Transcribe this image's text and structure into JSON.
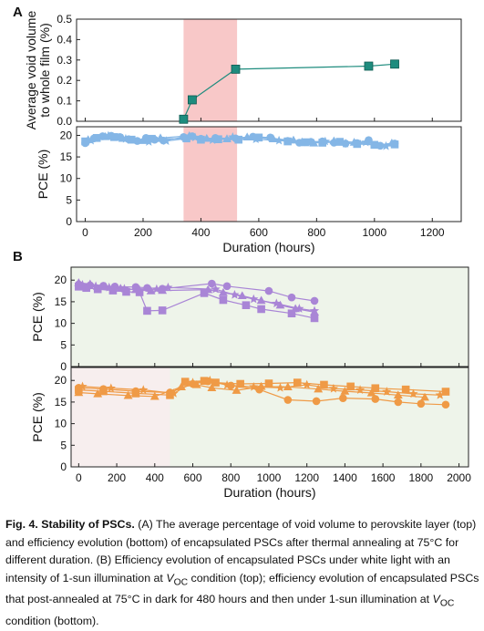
{
  "panel_labels": {
    "a": "A",
    "b": "B"
  },
  "caption": {
    "fig": "Fig. 4. Stability of PSCs.",
    "a_label": "(A)",
    "a_text": "The average percentage of void volume to perovskite layer (top) and efficiency evolution (bottom) of encapsulated PSCs after thermal annealing at 75°C for different duration.",
    "b_label": "(B)",
    "b_text_1": "Efficiency evolution of encapsulated PSCs under white light with an intensity of 1-sun illumination at",
    "b_text_2": "condition (top); efficiency evolution of encapsulated PSCs that post-annealed at 75°C in dark for 480 hours and then under 1-sun illumination at",
    "b_text_3": "condition (bottom).",
    "voc": "V",
    "voc_sub": "OC"
  },
  "colors": {
    "teal": "#1e8c7e",
    "blue": "#84b6e6",
    "purple": "#a985d6",
    "orange": "#ef9a46",
    "pink_band": "#f8c8c8",
    "green_band": "#eef4ea",
    "pinkish_band": "#f7eeee"
  },
  "chart_data": [
    {
      "id": "A-top",
      "type": "line",
      "ylabel_line1": "Average void volume",
      "ylabel_line2": "to whole film (%)",
      "ylim": [
        0,
        0.5
      ],
      "yticks": [
        "0.0",
        "0.1",
        "0.2",
        "0.3",
        "0.4",
        "0.5"
      ],
      "xlim": [
        -30,
        1300
      ],
      "shaded_range": [
        340,
        525
      ],
      "series": [
        {
          "marker": "square",
          "color": "teal",
          "x": [
            340,
            370,
            520,
            980,
            1070
          ],
          "y": [
            0.01,
            0.105,
            0.255,
            0.27,
            0.28
          ]
        }
      ]
    },
    {
      "id": "A-bottom",
      "type": "line",
      "ylabel": "PCE (%)",
      "ylim": [
        0,
        22
      ],
      "yticks": [
        "0",
        "5",
        "10",
        "15",
        "20"
      ],
      "xlim": [
        -30,
        1300
      ],
      "xticks": [
        "0",
        "200",
        "400",
        "600",
        "800",
        "1000",
        "1200"
      ],
      "xlabel": "Duration (hours)",
      "shaded_range": [
        340,
        525
      ],
      "series": [
        {
          "marker": "circle",
          "color": "blue",
          "x": [
            0,
            30,
            60,
            90,
            120,
            150,
            180,
            210,
            240,
            270,
            340,
            370,
            400,
            450,
            520,
            580,
            640,
            700,
            740,
            780,
            820,
            860,
            900,
            940,
            980,
            1020,
            1070
          ],
          "y": [
            18.2,
            19.3,
            19.8,
            19.9,
            19.6,
            19.1,
            18.7,
            19.4,
            19.0,
            18.8,
            19.6,
            19.8,
            19.2,
            19.4,
            19.3,
            19.7,
            19.5,
            18.7,
            18.3,
            18.5,
            18.6,
            18.3,
            18.1,
            18.2,
            18.9,
            17.6,
            18.1
          ]
        },
        {
          "marker": "square",
          "color": "blue",
          "x": [
            0,
            40,
            100,
            160,
            230,
            350,
            400,
            460,
            530,
            600,
            700,
            760,
            820,
            880,
            940,
            1000,
            1070
          ],
          "y": [
            18.6,
            19.4,
            19.6,
            19.0,
            19.2,
            19.3,
            19.0,
            19.1,
            19.0,
            19.5,
            18.6,
            18.4,
            18.3,
            18.5,
            18.0,
            17.8,
            17.9
          ]
        },
        {
          "marker": "triangle",
          "color": "blue",
          "x": [
            10,
            70,
            130,
            200,
            260,
            360,
            420,
            490,
            560,
            650,
            720,
            790,
            860,
            930,
            1010,
            1060
          ],
          "y": [
            19.0,
            19.7,
            19.3,
            18.8,
            19.4,
            19.9,
            19.3,
            19.2,
            19.6,
            19.2,
            18.9,
            18.2,
            18.7,
            18.4,
            17.7,
            18.2
          ]
        },
        {
          "marker": "star",
          "color": "blue",
          "x": [
            20,
            80,
            140,
            220,
            280,
            380,
            440,
            510,
            590,
            670,
            750,
            830,
            900,
            970,
            1040
          ],
          "y": [
            18.8,
            19.9,
            19.2,
            18.5,
            18.7,
            19.5,
            18.9,
            19.6,
            19.1,
            18.8,
            18.4,
            18.6,
            18.1,
            18.4,
            17.5
          ]
        }
      ]
    },
    {
      "id": "B-top",
      "type": "line",
      "ylabel": "PCE (%)",
      "ylim": [
        0,
        23
      ],
      "yticks": [
        "0",
        "5",
        "10",
        "15",
        "20"
      ],
      "xlim": [
        -40,
        2050
      ],
      "series": [
        {
          "marker": "circle",
          "color": "purple",
          "x": [
            0,
            60,
            130,
            190,
            300,
            360,
            440,
            700,
            780,
            1000,
            1120,
            1240
          ],
          "y": [
            19.0,
            18.8,
            18.7,
            18.5,
            18.4,
            18.2,
            18.0,
            19.2,
            18.6,
            17.5,
            16.0,
            15.2
          ]
        },
        {
          "marker": "square",
          "color": "purple",
          "x": [
            0,
            40,
            100,
            180,
            250,
            320,
            360,
            440,
            660,
            760,
            880,
            960,
            1120,
            1240
          ],
          "y": [
            18.5,
            18.2,
            17.9,
            17.6,
            17.3,
            17.2,
            12.9,
            13.0,
            17.0,
            15.4,
            14.2,
            13.3,
            12.3,
            11.2
          ]
        },
        {
          "marker": "triangle",
          "color": "purple",
          "x": [
            0,
            60,
            140,
            220,
            300,
            380,
            440,
            680,
            760,
            860,
            960,
            1060,
            1140,
            1240
          ],
          "y": [
            19.4,
            19.1,
            18.5,
            18.1,
            17.8,
            17.5,
            17.6,
            17.8,
            17.1,
            16.4,
            15.3,
            14.2,
            13.4,
            12.6
          ]
        },
        {
          "marker": "star",
          "color": "purple",
          "x": [
            20,
            90,
            160,
            240,
            320,
            410,
            470,
            720,
            820,
            920,
            1040,
            1160,
            1240
          ],
          "y": [
            18.9,
            18.6,
            18.3,
            18.0,
            17.7,
            17.9,
            18.3,
            17.9,
            16.6,
            15.6,
            14.6,
            13.4,
            12.9
          ]
        }
      ]
    },
    {
      "id": "B-bottom",
      "type": "line",
      "ylabel": "PCE (%)",
      "ylim": [
        0,
        23
      ],
      "yticks": [
        "0",
        "5",
        "10",
        "15",
        "20"
      ],
      "xlim": [
        -40,
        2050
      ],
      "xticks": [
        "0",
        "200",
        "400",
        "600",
        "800",
        "1000",
        "1200",
        "1400",
        "1600",
        "1800",
        "2000"
      ],
      "xlabel": "Duration (hours)",
      "shaded_range": [
        -40,
        480
      ],
      "series": [
        {
          "marker": "circle",
          "color": "orange",
          "x": [
            0,
            130,
            300,
            480,
            600,
            680,
            800,
            950,
            1100,
            1250,
            1390,
            1560,
            1680,
            1800,
            1930
          ],
          "y": [
            18.3,
            18.0,
            17.5,
            17.2,
            19.2,
            19.8,
            18.8,
            17.9,
            15.5,
            15.2,
            15.9,
            15.7,
            15.0,
            14.6,
            14.4
          ]
        },
        {
          "marker": "square",
          "color": "orange",
          "x": [
            0,
            130,
            300,
            480,
            560,
            660,
            720,
            850,
            1000,
            1150,
            1290,
            1430,
            1560,
            1720,
            1930
          ],
          "y": [
            17.8,
            17.5,
            17.0,
            16.6,
            19.7,
            19.9,
            19.5,
            19.2,
            19.3,
            19.5,
            19.0,
            18.6,
            18.2,
            17.9,
            17.4
          ]
        },
        {
          "marker": "triangle",
          "color": "orange",
          "x": [
            0,
            100,
            260,
            400,
            540,
            620,
            700,
            830,
            960,
            1100,
            1260,
            1400,
            1540,
            1680,
            1820
          ],
          "y": [
            17.2,
            16.9,
            16.5,
            16.3,
            18.5,
            19.0,
            18.3,
            17.7,
            18.6,
            18.5,
            18.0,
            17.5,
            17.1,
            16.6,
            16.1
          ]
        },
        {
          "marker": "star",
          "color": "orange",
          "x": [
            20,
            170,
            340,
            500,
            600,
            690,
            780,
            920,
            1060,
            1200,
            1340,
            1480,
            1620,
            1760,
            1900
          ],
          "y": [
            18.6,
            18.2,
            17.8,
            17.0,
            19.5,
            20.0,
            18.9,
            18.5,
            18.3,
            19.0,
            18.1,
            17.8,
            17.4,
            16.9,
            16.6
          ]
        }
      ]
    }
  ]
}
